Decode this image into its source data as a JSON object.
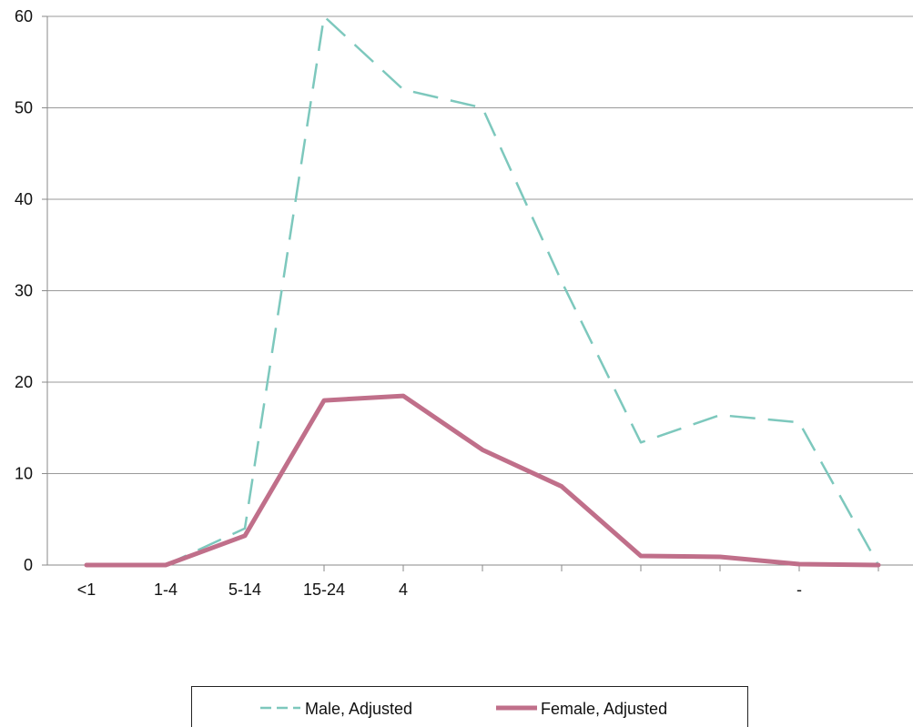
{
  "chart_data": {
    "type": "line",
    "categories": [
      "<1",
      "1-4",
      "5-14",
      "15-24",
      "4",
      "",
      "",
      "",
      "",
      "-",
      ""
    ],
    "series": [
      {
        "name": "Male, Adjusted",
        "values": [
          0,
          0,
          4.0,
          60.0,
          52.0,
          50.0,
          31.0,
          13.4,
          16.4,
          15.6,
          0
        ],
        "color": "#7dc8bd",
        "style": "dashed"
      },
      {
        "name": "Female, Adjusted",
        "values": [
          0,
          0,
          3.2,
          18.0,
          18.5,
          12.6,
          8.6,
          1.0,
          0.9,
          0.1,
          0
        ],
        "color": "#c06f8a",
        "style": "solid"
      }
    ],
    "ylim": [
      0,
      60
    ],
    "yticks": [
      0,
      10,
      20,
      30,
      40,
      50,
      60
    ],
    "ytick_labels": [
      "0",
      "10",
      "20",
      "30",
      "40",
      "50",
      "60"
    ],
    "grid": "horizontal",
    "legend_position": "bottom"
  }
}
